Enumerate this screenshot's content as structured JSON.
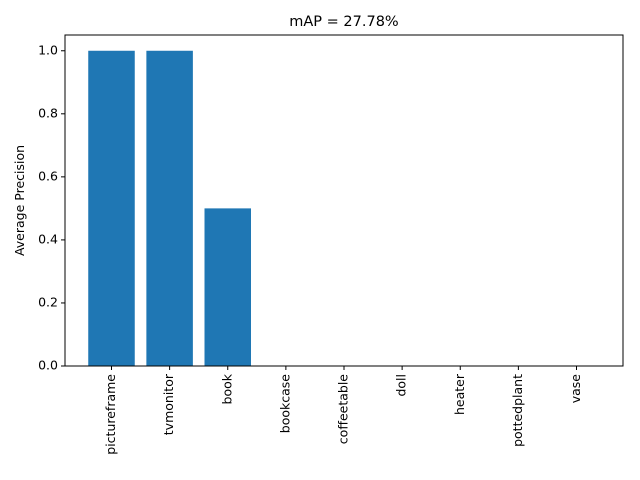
{
  "chart_data": {
    "type": "bar",
    "title": "mAP = 27.78%",
    "xlabel": "",
    "ylabel": "Average Precision",
    "categories": [
      "pictureframe",
      "tvmonitor",
      "book",
      "bookcase",
      "coffeetable",
      "doll",
      "heater",
      "pottedplant",
      "vase"
    ],
    "values": [
      1.0,
      1.0,
      0.5,
      0.0,
      0.0,
      0.0,
      0.0,
      0.0,
      0.0
    ],
    "ylim": [
      0,
      1.05
    ],
    "yticks": [
      0.0,
      0.2,
      0.4,
      0.6,
      0.8,
      1.0
    ],
    "ytick_labels": [
      "0.0",
      "0.2",
      "0.4",
      "0.6",
      "0.8",
      "1.0"
    ],
    "bar_color": "#1f77b4",
    "grid": false,
    "legend": "none"
  }
}
